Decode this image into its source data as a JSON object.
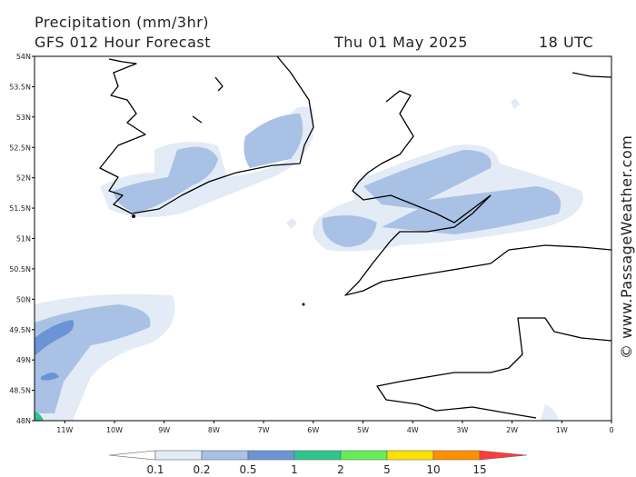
{
  "header": {
    "title": "Precipitation (mm/3hr)",
    "subtitle": "GFS 012 Hour Forecast",
    "date": "Thu 01 May 2025",
    "time": "18 UTC"
  },
  "credit": "© www.PassageWeather.com",
  "map": {
    "lat_labels": [
      "54N",
      "53.5N",
      "53N",
      "52.5N",
      "52N",
      "51.5N",
      "51N",
      "50.5N",
      "50N",
      "49.5N",
      "49N",
      "48.5N",
      "48N"
    ],
    "lon_labels": [
      "11W",
      "10W",
      "9W",
      "8W",
      "7W",
      "6W",
      "5W",
      "4W",
      "3W",
      "2W",
      "1W",
      "0"
    ]
  },
  "legend": {
    "labels": [
      "0.1",
      "0.2",
      "0.5",
      "1",
      "2",
      "5",
      "10",
      "15"
    ],
    "colors": [
      "#ffffff",
      "#e3ebf7",
      "#a9c1e5",
      "#6b93d6",
      "#2ec58e",
      "#66ee55",
      "#ffe000",
      "#ff9000",
      "#ff3b3b"
    ]
  }
}
